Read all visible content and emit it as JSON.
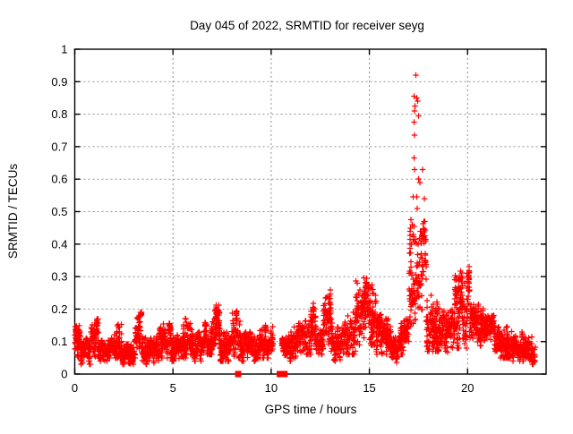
{
  "chart_data": {
    "type": "scatter",
    "title": "Day 045 of 2022, SRMTID for receiver seyg",
    "xlabel": "GPS time / hours",
    "ylabel": "SRMTID / TECUs",
    "xlim": [
      0,
      24
    ],
    "ylim": [
      0,
      1
    ],
    "xticks": [
      0,
      5,
      10,
      15,
      20
    ],
    "yticks": [
      0,
      0.1,
      0.2,
      0.3,
      0.4,
      0.5,
      0.6,
      0.7,
      0.8,
      0.9,
      1
    ],
    "grid": true,
    "grid_color": "#909090",
    "marker": "plus",
    "marker_color": "#ff0000",
    "border_color": "#000000",
    "legend": "none",
    "series": [
      {
        "name": "SRMTID",
        "marker": "plus",
        "density_bins": [
          [
            0.0,
            0.3,
            0.05,
            0.16,
            40
          ],
          [
            0.3,
            0.8,
            0.03,
            0.11,
            60
          ],
          [
            0.8,
            1.2,
            0.05,
            0.17,
            48
          ],
          [
            1.2,
            2.0,
            0.04,
            0.11,
            90
          ],
          [
            2.0,
            2.4,
            0.05,
            0.165,
            48
          ],
          [
            2.4,
            3.0,
            0.03,
            0.1,
            70
          ],
          [
            3.0,
            3.4,
            0.05,
            0.19,
            48
          ],
          [
            3.4,
            4.3,
            0.03,
            0.12,
            100
          ],
          [
            4.3,
            4.9,
            0.05,
            0.155,
            70
          ],
          [
            4.9,
            5.5,
            0.04,
            0.12,
            70
          ],
          [
            5.5,
            6.0,
            0.05,
            0.195,
            60
          ],
          [
            6.0,
            6.5,
            0.04,
            0.13,
            60
          ],
          [
            6.5,
            7.0,
            0.06,
            0.16,
            60
          ],
          [
            7.0,
            7.4,
            0.07,
            0.225,
            48
          ],
          [
            7.4,
            8.0,
            0.04,
            0.135,
            70
          ],
          [
            8.0,
            8.5,
            0.05,
            0.2,
            60
          ],
          [
            8.5,
            9.4,
            0.04,
            0.13,
            100
          ],
          [
            9.4,
            10.1,
            0.05,
            0.155,
            80
          ],
          [
            10.55,
            11.0,
            0.04,
            0.12,
            50
          ],
          [
            11.0,
            11.6,
            0.05,
            0.16,
            70
          ],
          [
            11.6,
            12.3,
            0.06,
            0.22,
            80
          ],
          [
            12.3,
            12.65,
            0.06,
            0.155,
            40
          ],
          [
            12.65,
            13.1,
            0.07,
            0.28,
            55
          ],
          [
            13.1,
            13.75,
            0.04,
            0.16,
            75
          ],
          [
            13.75,
            14.3,
            0.06,
            0.22,
            65
          ],
          [
            14.3,
            15.35,
            0.09,
            0.31,
            130
          ],
          [
            15.35,
            16.1,
            0.06,
            0.19,
            85
          ],
          [
            16.1,
            16.45,
            0.035,
            0.12,
            40
          ],
          [
            16.45,
            17.0,
            0.06,
            0.17,
            65
          ],
          [
            17.0,
            17.9,
            0.1,
            0.47,
            110
          ],
          [
            17.9,
            18.6,
            0.07,
            0.25,
            80
          ],
          [
            18.6,
            19.35,
            0.06,
            0.2,
            85
          ],
          [
            19.35,
            20.1,
            0.08,
            0.33,
            90
          ],
          [
            20.1,
            20.8,
            0.08,
            0.22,
            80
          ],
          [
            20.8,
            21.5,
            0.07,
            0.18,
            80
          ],
          [
            21.5,
            22.3,
            0.05,
            0.155,
            90
          ],
          [
            22.3,
            23.0,
            0.04,
            0.13,
            80
          ],
          [
            23.0,
            23.45,
            0.03,
            0.12,
            50
          ]
        ],
        "peak_points": [
          [
            17.36,
            0.92
          ],
          [
            17.28,
            0.855
          ],
          [
            17.42,
            0.85
          ],
          [
            17.47,
            0.84
          ],
          [
            17.33,
            0.825
          ],
          [
            17.3,
            0.81
          ],
          [
            17.5,
            0.795
          ],
          [
            17.27,
            0.775
          ],
          [
            17.31,
            0.735
          ],
          [
            17.28,
            0.665
          ],
          [
            17.3,
            0.63
          ],
          [
            17.72,
            0.63
          ],
          [
            17.5,
            0.6
          ],
          [
            17.58,
            0.59
          ],
          [
            17.22,
            0.545
          ],
          [
            17.42,
            0.545
          ],
          [
            17.8,
            0.54
          ],
          [
            17.44,
            0.51
          ],
          [
            17.12,
            0.475
          ],
          [
            17.18,
            0.46
          ],
          [
            17.28,
            0.455
          ],
          [
            17.08,
            0.44
          ],
          [
            17.22,
            0.43
          ],
          [
            17.35,
            0.415
          ],
          [
            17.15,
            0.4
          ],
          [
            17.48,
            0.4
          ]
        ]
      },
      {
        "name": "zero-flags",
        "marker": "filled-square",
        "points": [
          [
            8.32,
            0
          ],
          [
            10.44,
            0
          ],
          [
            10.68,
            0
          ]
        ]
      }
    ],
    "data_gap_hours": [
      10.1,
      10.55
    ],
    "data_end_hour": 23.45
  }
}
